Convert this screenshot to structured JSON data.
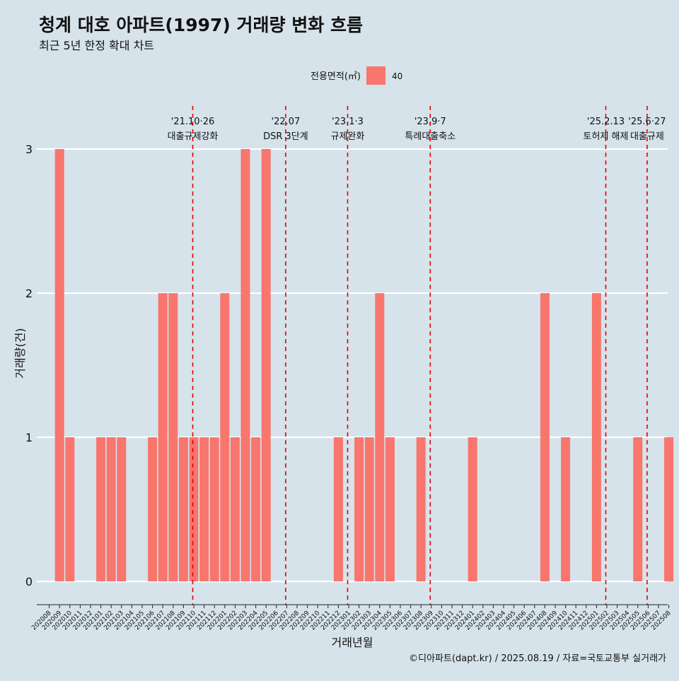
{
  "chart_data": {
    "type": "bar",
    "title": "청계 대호 아파트(1997) 거래량 변화 흐름",
    "subtitle": "최근 5년 한정 확대 차트",
    "xlabel": "거래년월",
    "ylabel": "거래량(건)",
    "legend": {
      "title": "전용면적(㎡)",
      "items": [
        {
          "label": "40",
          "color": "#f8766d"
        }
      ],
      "position": "top"
    },
    "caption": "©디아파트(dapt.kr) / 2025.08.19 / 자료=국토교통부 실거래가",
    "ylim": [
      0,
      3
    ],
    "yticks": [
      0,
      1,
      2,
      3
    ],
    "grid": true,
    "categories": [
      "202008",
      "202009",
      "202010",
      "202011",
      "202012",
      "202101",
      "202102",
      "202103",
      "202104",
      "202105",
      "202106",
      "202107",
      "202108",
      "202109",
      "202110",
      "202111",
      "202112",
      "202201",
      "202202",
      "202203",
      "202204",
      "202205",
      "202206",
      "202207",
      "202208",
      "202209",
      "202210",
      "202211",
      "202212",
      "202301",
      "202302",
      "202303",
      "202304",
      "202305",
      "202306",
      "202307",
      "202308",
      "202309",
      "202310",
      "202311",
      "202312",
      "202401",
      "202402",
      "202403",
      "202404",
      "202405",
      "202406",
      "202407",
      "202408",
      "202409",
      "202410",
      "202411",
      "202412",
      "202501",
      "202502",
      "202503",
      "202504",
      "202505",
      "202506",
      "202507",
      "202508"
    ],
    "series": [
      {
        "name": "40",
        "color": "#f8766d",
        "values": [
          0,
          3,
          1,
          0,
          0,
          1,
          1,
          1,
          0,
          0,
          1,
          2,
          2,
          1,
          1,
          1,
          1,
          2,
          1,
          3,
          1,
          3,
          0,
          0,
          0,
          0,
          0,
          0,
          1,
          0,
          1,
          1,
          2,
          1,
          0,
          0,
          1,
          0,
          0,
          0,
          0,
          1,
          0,
          0,
          0,
          0,
          0,
          0,
          2,
          0,
          1,
          0,
          0,
          2,
          0,
          0,
          0,
          1,
          0,
          0,
          1
        ]
      }
    ],
    "annotations": [
      {
        "x": "202110",
        "line1": "'21.10·26",
        "line2": "대출규제강화"
      },
      {
        "x": "202207",
        "line1": "'22.07",
        "line2": "DSR 3단계"
      },
      {
        "x": "202301",
        "line1": "'23.1·3",
        "line2": "규제완화"
      },
      {
        "x": "202309",
        "line1": "'23.9·7",
        "line2": "특례대출축소"
      },
      {
        "x": "202502",
        "line1": "'25.2.13",
        "line2": "토허제 해제"
      },
      {
        "x": "202506",
        "line1": "'25.6·27",
        "line2": "대출규제"
      }
    ]
  }
}
